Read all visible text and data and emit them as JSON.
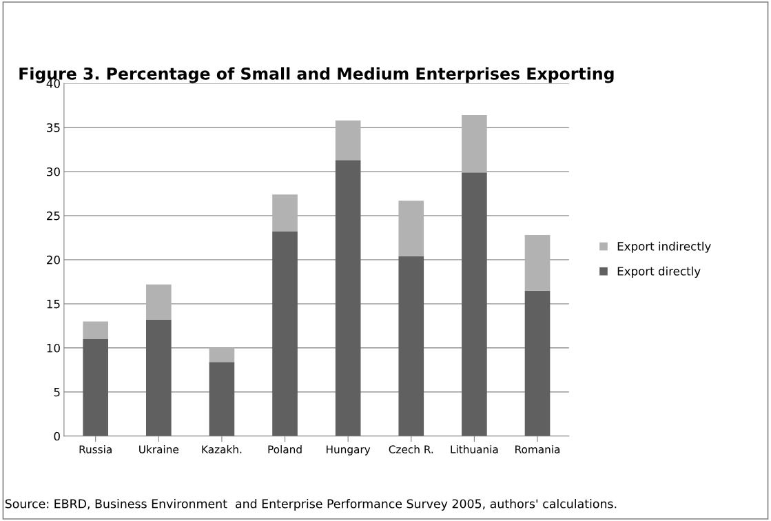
{
  "chart_data": {
    "type": "bar",
    "stacked": true,
    "title": "Figure 3. Percentage of Small and Medium Enterprises Exporting",
    "categories": [
      "Russia",
      "Ukraine",
      "Kazakh.",
      "Poland",
      "Hungary",
      "Czech R.",
      "Lithuania",
      "Romania"
    ],
    "series": [
      {
        "name": "Export directly",
        "color": "#606060",
        "values": [
          11.0,
          13.2,
          8.4,
          23.2,
          31.3,
          20.4,
          29.9,
          16.5
        ]
      },
      {
        "name": "Export indirectly",
        "color": "#b2b2b2",
        "values": [
          2.0,
          4.0,
          1.6,
          4.2,
          4.5,
          6.3,
          6.5,
          6.3
        ]
      }
    ],
    "ylim": [
      0,
      40
    ],
    "yticks": [
      0,
      5,
      10,
      15,
      20,
      25,
      30,
      35,
      40
    ],
    "grid": "y",
    "legend": "right",
    "annotations": [
      "Source: EBRD, Business Environment  and Enterprise Performance Survey 2005, authors' calculations."
    ]
  }
}
